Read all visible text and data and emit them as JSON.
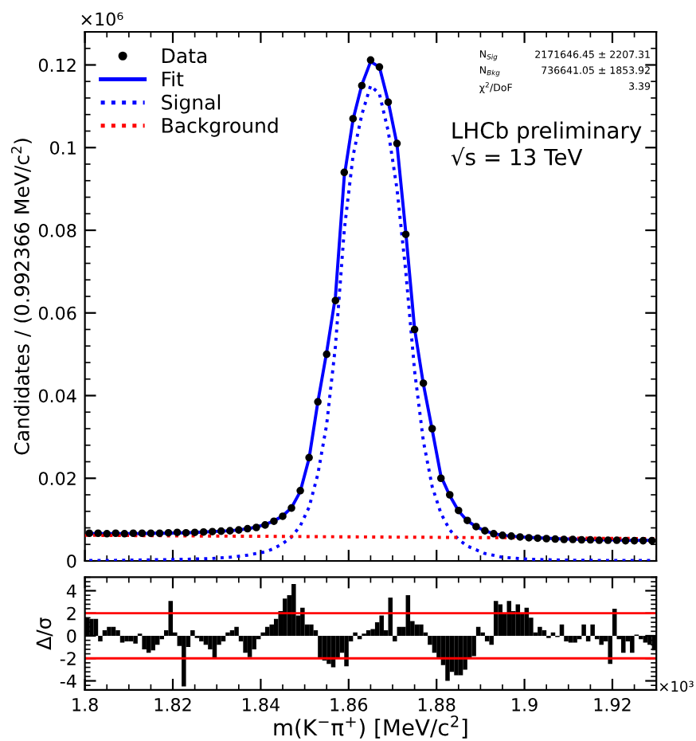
{
  "chart_data": [
    {
      "type": "line",
      "xlim": [
        1.8,
        1.93
      ],
      "xticks": [
        1.8,
        1.82,
        1.84,
        1.86,
        1.88,
        1.9,
        1.92
      ],
      "ylim": [
        0,
        0.128
      ],
      "yticks": [
        0,
        0.02,
        0.04,
        0.06,
        0.08,
        0.1,
        0.12
      ],
      "tick_labels": "y",
      "ylabel": "Candidates / (0.992366 MeV/c$^{2}$)",
      "legend": "top left",
      "annotations": [
        "×10⁶",
        "N$_{Sig}$",
        "2171646.45 ± 2207.31",
        "N$_{Bkg}$",
        "736641.05 ± 1853.92",
        "χ$^{2}$/DoF",
        "3.39",
        "LHCb preliminary",
        "√s = 13 TeV"
      ],
      "series": [
        {
          "name": "Data",
          "type": "scatter",
          "marker": "circle",
          "color": "#000000",
          "x": [
            1.801,
            1.803,
            1.805,
            1.807,
            1.809,
            1.811,
            1.813,
            1.815,
            1.817,
            1.819,
            1.821,
            1.823,
            1.825,
            1.827,
            1.829,
            1.831,
            1.833,
            1.835,
            1.837,
            1.839,
            1.841,
            1.843,
            1.845,
            1.847,
            1.849,
            1.851,
            1.853,
            1.855,
            1.857,
            1.859,
            1.861,
            1.863,
            1.865,
            1.867,
            1.869,
            1.871,
            1.873,
            1.875,
            1.877,
            1.879,
            1.881,
            1.883,
            1.885,
            1.887,
            1.889,
            1.891,
            1.893,
            1.895,
            1.897,
            1.899,
            1.901,
            1.903,
            1.905,
            1.907,
            1.909,
            1.911,
            1.913,
            1.915,
            1.917,
            1.919,
            1.921,
            1.923,
            1.925,
            1.927,
            1.929
          ],
          "values": [
            0.0067,
            0.0067,
            0.0066,
            0.0067,
            0.0066,
            0.0067,
            0.0067,
            0.0067,
            0.0067,
            0.0068,
            0.0069,
            0.0068,
            0.0069,
            0.007,
            0.0071,
            0.0072,
            0.0073,
            0.0075,
            0.0078,
            0.0081,
            0.0087,
            0.0096,
            0.0108,
            0.0128,
            0.017,
            0.025,
            0.0385,
            0.05,
            0.063,
            0.094,
            0.107,
            0.115,
            0.1212,
            0.1195,
            0.111,
            0.101,
            0.079,
            0.056,
            0.043,
            0.032,
            0.02,
            0.016,
            0.0122,
            0.0098,
            0.0083,
            0.0073,
            0.0066,
            0.0062,
            0.006,
            0.0058,
            0.0056,
            0.0055,
            0.0054,
            0.0053,
            0.0052,
            0.0052,
            0.0051,
            0.0051,
            0.005,
            0.005,
            0.005,
            0.0049,
            0.0049,
            0.0049,
            0.0049
          ]
        },
        {
          "name": "Fit",
          "type": "line",
          "line_style": "solid",
          "color": "#0000ff",
          "x": [
            1.801,
            1.803,
            1.805,
            1.807,
            1.809,
            1.811,
            1.813,
            1.815,
            1.817,
            1.819,
            1.821,
            1.823,
            1.825,
            1.827,
            1.829,
            1.831,
            1.833,
            1.835,
            1.837,
            1.839,
            1.841,
            1.843,
            1.845,
            1.847,
            1.849,
            1.851,
            1.853,
            1.855,
            1.857,
            1.859,
            1.861,
            1.863,
            1.865,
            1.867,
            1.869,
            1.871,
            1.873,
            1.875,
            1.877,
            1.879,
            1.881,
            1.883,
            1.885,
            1.887,
            1.889,
            1.891,
            1.893,
            1.895,
            1.897,
            1.899,
            1.901,
            1.903,
            1.905,
            1.907,
            1.909,
            1.911,
            1.913,
            1.915,
            1.917,
            1.919,
            1.921,
            1.923,
            1.925,
            1.927,
            1.929
          ],
          "values": [
            0.0066,
            0.0066,
            0.0066,
            0.0066,
            0.0066,
            0.0066,
            0.0066,
            0.0067,
            0.0067,
            0.0067,
            0.0068,
            0.0068,
            0.0069,
            0.007,
            0.0071,
            0.0072,
            0.0073,
            0.0075,
            0.0078,
            0.0082,
            0.0088,
            0.0097,
            0.0109,
            0.0129,
            0.0168,
            0.0248,
            0.0385,
            0.0505,
            0.064,
            0.093,
            0.1068,
            0.1152,
            0.1208,
            0.1195,
            0.1112,
            0.1008,
            0.0795,
            0.0562,
            0.0428,
            0.0318,
            0.0205,
            0.0158,
            0.0121,
            0.0097,
            0.0083,
            0.0073,
            0.0066,
            0.0062,
            0.006,
            0.0058,
            0.0057,
            0.0056,
            0.0055,
            0.0054,
            0.0053,
            0.0053,
            0.0052,
            0.0052,
            0.0051,
            0.0051,
            0.0051,
            0.005,
            0.005,
            0.005,
            0.005
          ]
        },
        {
          "name": "Signal",
          "type": "line",
          "line_style": "dotted",
          "color": "#0000ff",
          "x": [
            1.801,
            1.805,
            1.811,
            1.817,
            1.823,
            1.829,
            1.833,
            1.837,
            1.841,
            1.843,
            1.845,
            1.847,
            1.849,
            1.851,
            1.853,
            1.855,
            1.857,
            1.859,
            1.861,
            1.863,
            1.865,
            1.867,
            1.869,
            1.871,
            1.873,
            1.875,
            1.877,
            1.879,
            1.881,
            1.883,
            1.885,
            1.887,
            1.891,
            1.895,
            1.901,
            1.909,
            1.919,
            1.929
          ],
          "values": [
            0.0001,
            0.0001,
            0.0002,
            0.0003,
            0.0004,
            0.0006,
            0.0009,
            0.0014,
            0.0022,
            0.003,
            0.0042,
            0.0058,
            0.0085,
            0.013,
            0.021,
            0.033,
            0.052,
            0.08,
            0.098,
            0.108,
            0.115,
            0.113,
            0.104,
            0.09,
            0.07,
            0.046,
            0.029,
            0.018,
            0.0115,
            0.0075,
            0.0052,
            0.0036,
            0.0018,
            0.0009,
            0.0004,
            0.0002,
            0.0001,
            0.0001
          ]
        },
        {
          "name": "Background",
          "type": "line",
          "line_style": "dotted",
          "color": "#ff0000",
          "x": [
            1.8,
            1.93
          ],
          "values": [
            0.0062,
            0.0054
          ]
        }
      ]
    },
    {
      "type": "bar",
      "color": "#000000",
      "xlim": [
        1.8,
        1.93
      ],
      "xticks": [
        1.8,
        1.82,
        1.84,
        1.86,
        1.88,
        1.9,
        1.92
      ],
      "ylim": [
        -4.8,
        5.2
      ],
      "yticks": [
        -4,
        -2,
        0,
        2,
        4
      ],
      "xlabel": "m(K$^{−}$π$^{+}$) [MeV/c$^{2}$]",
      "ylabel": "Δ/σ",
      "annotations": [
        "×10³"
      ],
      "ref_lines": [
        {
          "axis": "y",
          "value": 2,
          "color": "#ff0000"
        },
        {
          "axis": "y",
          "value": -2,
          "color": "#ff0000"
        }
      ],
      "x": [
        1.8005,
        1.8015,
        1.8025,
        1.8035,
        1.8045,
        1.8055,
        1.8065,
        1.8075,
        1.8085,
        1.8095,
        1.8105,
        1.8115,
        1.8125,
        1.8135,
        1.8145,
        1.8155,
        1.8165,
        1.8175,
        1.8185,
        1.8195,
        1.8205,
        1.8215,
        1.8225,
        1.8235,
        1.8245,
        1.8255,
        1.8265,
        1.8275,
        1.8285,
        1.8295,
        1.8305,
        1.8315,
        1.8325,
        1.8335,
        1.8345,
        1.8355,
        1.8365,
        1.8375,
        1.8385,
        1.8395,
        1.8405,
        1.8415,
        1.8425,
        1.8435,
        1.8445,
        1.8455,
        1.8465,
        1.8475,
        1.8485,
        1.8495,
        1.8505,
        1.8515,
        1.8525,
        1.8535,
        1.8545,
        1.8555,
        1.8565,
        1.8575,
        1.8585,
        1.8595,
        1.8605,
        1.8615,
        1.8625,
        1.8635,
        1.8645,
        1.8655,
        1.8665,
        1.8675,
        1.8685,
        1.8695,
        1.8705,
        1.8715,
        1.8725,
        1.8735,
        1.8745,
        1.8755,
        1.8765,
        1.8775,
        1.8785,
        1.8795,
        1.8805,
        1.8815,
        1.8825,
        1.8835,
        1.8845,
        1.8855,
        1.8865,
        1.8875,
        1.8885,
        1.8895,
        1.8905,
        1.8915,
        1.8925,
        1.8935,
        1.8945,
        1.8955,
        1.8965,
        1.8975,
        1.8985,
        1.8995,
        1.9005,
        1.9015,
        1.9025,
        1.9035,
        1.9045,
        1.9055,
        1.9065,
        1.9075,
        1.9085,
        1.9095,
        1.9105,
        1.9115,
        1.9125,
        1.9135,
        1.9145,
        1.9155,
        1.9165,
        1.9175,
        1.9185,
        1.9195,
        1.9205,
        1.9215,
        1.9225,
        1.9235,
        1.9245,
        1.9255,
        1.9265,
        1.9275,
        1.9285,
        1.9295
      ],
      "values": [
        1.6,
        1.5,
        1.5,
        -0.5,
        0.5,
        0.8,
        0.8,
        0.5,
        -0.6,
        -0.5,
        -0.5,
        -0.7,
        0.2,
        -1.2,
        -1.5,
        -1.3,
        -0.8,
        -0.3,
        0.5,
        3.1,
        0.3,
        -0.9,
        -4.5,
        -1.0,
        0.5,
        -0.2,
        -0.5,
        -0.8,
        -1.2,
        -2.0,
        -0.8,
        -0.5,
        0.3,
        0.5,
        0.8,
        -0.5,
        -1.5,
        -1.9,
        -1.2,
        -0.3,
        0.3,
        0.8,
        1.0,
        1.5,
        2.2,
        3.3,
        3.6,
        4.6,
        1.8,
        2.5,
        1.0,
        1.0,
        0.5,
        -2.0,
        -2.2,
        -2.5,
        -2.8,
        -2.0,
        -1.5,
        -2.7,
        -0.5,
        0.3,
        -0.3,
        0.2,
        0.5,
        0.6,
        1.2,
        1.8,
        0.5,
        3.4,
        -0.5,
        0.8,
        0.8,
        3.6,
        1.3,
        1.0,
        1.0,
        0.3,
        -0.8,
        -1.5,
        -2.0,
        -2.6,
        -4.0,
        -3.2,
        -3.5,
        -3.5,
        -3.0,
        -2.0,
        -1.8,
        0.8,
        0.3,
        -0.5,
        -0.8,
        3.1,
        2.8,
        2.0,
        3.1,
        2.2,
        2.8,
        2.0,
        2.5,
        1.6,
        0.3,
        0.8,
        0.5,
        -0.2,
        0.3,
        -0.1,
        1.0,
        -0.5,
        -0.6,
        -0.6,
        -0.3,
        1.0,
        -0.5,
        1.0,
        -0.3,
        -0.8,
        -0.5,
        -2.5,
        2.4,
        -0.3,
        -1.5,
        -0.5,
        -1.5,
        0.1,
        -0.3,
        -0.6,
        -0.8,
        -1.3
      ]
    }
  ]
}
